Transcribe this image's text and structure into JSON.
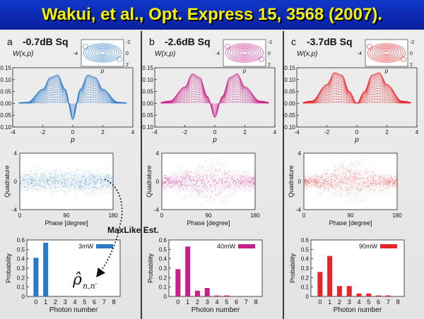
{
  "banner": {
    "title": "Wakui, et al., Opt. Express 15, 3568 (2007)."
  },
  "annotations": {
    "maxlike": "MaxLike Est.",
    "rho_symbol": "ρ̂",
    "rho_sub": "n,n′"
  },
  "panels": [
    {
      "letter": "a",
      "heading": "-0.7dB Sq",
      "color": "#2a78c8",
      "wigner_ylabel": "W(x,p)",
      "wigner_xlabel": "p",
      "inset_p": "p",
      "sq": 0.7,
      "depth": 0.0
    },
    {
      "letter": "b",
      "heading": "-2.6dB Sq",
      "color": "#c8208a",
      "wigner_ylabel": "W(x,p)",
      "wigner_xlabel": "p",
      "inset_p": "p",
      "sq": 2.6,
      "depth": 0.0
    },
    {
      "letter": "c",
      "heading": "-3.7dB Sq",
      "color": "#e8242a",
      "wigner_ylabel": "W(x,p)",
      "wigner_xlabel": "p",
      "inset_p": "p",
      "sq": 3.7,
      "depth": 0.0
    }
  ],
  "chart_data": [
    {
      "type": "line",
      "panel": "a",
      "title": "",
      "xlabel": "p",
      "ylabel": "W(x,p)",
      "xlim": [
        -4,
        4
      ],
      "ylim": [
        -0.1,
        0.15
      ],
      "x_ticks": [
        "-4",
        "-2",
        "0",
        "2",
        "4"
      ],
      "y_ticks": [
        "-0.10",
        "-0.05",
        "0.00",
        "0.05",
        "0.10",
        "0.15"
      ],
      "x": [
        -4,
        -3,
        -2,
        -1.5,
        -1,
        -0.5,
        0,
        0.5,
        1,
        1.5,
        2,
        3,
        4
      ],
      "values": [
        0.0,
        0.005,
        0.06,
        0.11,
        0.12,
        0.06,
        -0.07,
        0.06,
        0.12,
        0.11,
        0.06,
        0.005,
        0.0
      ]
    },
    {
      "type": "line",
      "panel": "b",
      "title": "",
      "xlabel": "p",
      "ylabel": "W(x,p)",
      "xlim": [
        -4,
        4
      ],
      "ylim": [
        -0.1,
        0.15
      ],
      "x_ticks": [
        "-4",
        "-2",
        "0",
        "2",
        "4"
      ],
      "y_ticks": [
        "-0.10",
        "-0.05",
        "0.00",
        "0.05",
        "0.10",
        "0.15"
      ],
      "x": [
        -4,
        -3,
        -2,
        -1.5,
        -1,
        -0.5,
        0,
        0.5,
        1,
        1.5,
        2,
        3,
        4
      ],
      "values": [
        0.0,
        0.01,
        0.07,
        0.125,
        0.11,
        0.03,
        -0.06,
        0.03,
        0.11,
        0.125,
        0.07,
        0.01,
        0.0
      ]
    },
    {
      "type": "line",
      "panel": "c",
      "title": "",
      "xlabel": "p",
      "ylabel": "W(x,p)",
      "xlim": [
        -4,
        4
      ],
      "ylim": [
        -0.1,
        0.15
      ],
      "x_ticks": [
        "-4",
        "-2",
        "0",
        "2",
        "4"
      ],
      "y_ticks": [
        "-0.10",
        "-0.05",
        "0.00",
        "0.05",
        "0.10",
        "0.15"
      ],
      "x": [
        -4,
        -3,
        -2,
        -1.5,
        -1,
        -0.5,
        0,
        0.5,
        1,
        1.5,
        2,
        3,
        4
      ],
      "values": [
        0.0,
        0.01,
        0.08,
        0.13,
        0.12,
        0.05,
        0.0,
        0.05,
        0.12,
        0.13,
        0.08,
        0.01,
        0.0
      ]
    },
    {
      "type": "scatter",
      "panel": "a",
      "xlabel": "Phase [degree]",
      "ylabel": "Quadrature",
      "xlim": [
        0,
        180
      ],
      "ylim": [
        -4,
        4
      ],
      "x_ticks": [
        "0",
        "90",
        "180"
      ],
      "y_ticks": [
        "4",
        "0",
        "-4"
      ],
      "spread": {
        "min": 1.5,
        "max": 1.6
      }
    },
    {
      "type": "scatter",
      "panel": "b",
      "xlabel": "Phase [degree]",
      "ylabel": "Quadrature",
      "xlim": [
        0,
        180
      ],
      "ylim": [
        -4,
        4
      ],
      "x_ticks": [
        "0",
        "90",
        "180"
      ],
      "y_ticks": [
        "4",
        "0",
        "-4"
      ],
      "spread": {
        "min": 1.1,
        "max": 2.4
      }
    },
    {
      "type": "scatter",
      "panel": "c",
      "xlabel": "Phase [degree]",
      "ylabel": "Quadrature",
      "xlim": [
        0,
        180
      ],
      "ylim": [
        -4,
        4
      ],
      "x_ticks": [
        "0",
        "90",
        "180"
      ],
      "y_ticks": [
        "4",
        "0",
        "-4"
      ],
      "spread": {
        "min": 0.9,
        "max": 2.6
      }
    },
    {
      "type": "bar",
      "panel": "a",
      "xlabel": "Photon number",
      "ylabel": "Probability",
      "legend": "3mW",
      "ylim": [
        0,
        0.6
      ],
      "y_ticks": [
        "0",
        "0.1",
        "0.2",
        "0.3",
        "0.4",
        "0.5",
        "0.6"
      ],
      "categories": [
        "0",
        "1",
        "2",
        "3",
        "4",
        "5",
        "6",
        "7",
        "8"
      ],
      "values": [
        0.41,
        0.57,
        0.005,
        0.005,
        0.0,
        0.0,
        0.0,
        0.0,
        0.0
      ]
    },
    {
      "type": "bar",
      "panel": "b",
      "xlabel": "Photon number",
      "ylabel": "Probability",
      "legend": "40mW",
      "ylim": [
        0,
        0.6
      ],
      "y_ticks": [
        "0",
        "0.1",
        "0.2",
        "0.3",
        "0.4",
        "0.5",
        "0.6"
      ],
      "categories": [
        "0",
        "1",
        "2",
        "3",
        "4",
        "5",
        "6",
        "7",
        "8"
      ],
      "values": [
        0.29,
        0.53,
        0.06,
        0.09,
        0.01,
        0.01,
        0.0,
        0.0,
        0.0
      ]
    },
    {
      "type": "bar",
      "panel": "c",
      "xlabel": "Photon number",
      "ylabel": "Probability",
      "legend": "90mW",
      "ylim": [
        0,
        0.6
      ],
      "y_ticks": [
        "0",
        "0.1",
        "0.2",
        "0.3",
        "0.4",
        "0.5",
        "0.6"
      ],
      "categories": [
        "0",
        "1",
        "2",
        "3",
        "4",
        "5",
        "6",
        "7",
        "8"
      ],
      "values": [
        0.26,
        0.43,
        0.11,
        0.11,
        0.03,
        0.03,
        0.01,
        0.01,
        0.0
      ]
    }
  ]
}
